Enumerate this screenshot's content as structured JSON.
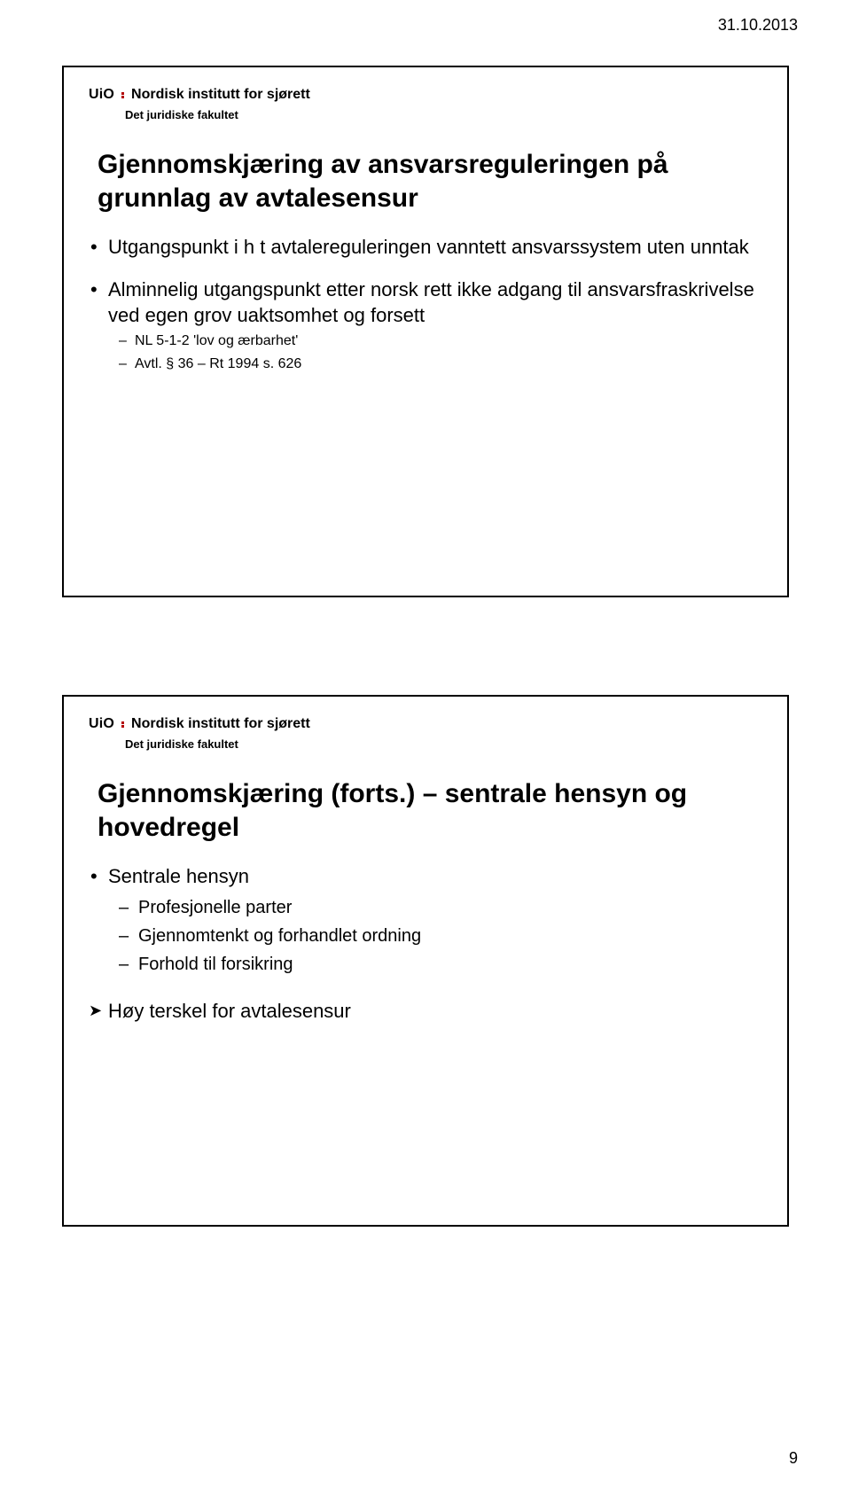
{
  "page": {
    "date": "31.10.2013",
    "page_number": "9"
  },
  "logo": {
    "uio": "UiO",
    "institute": "Nordisk institutt for sjørett",
    "faculty": "Det juridiske fakultet"
  },
  "slide1": {
    "title": "Gjennomskjæring av ansvarsreguleringen på grunnlag av avtalesensur",
    "b1": "Utgangspunkt i h t avtalereguleringen vanntett ansvarssystem uten unntak",
    "b2": "Alminnelig utgangspunkt etter norsk rett ikke adgang til ansvarsfraskrivelse ved egen grov uaktsomhet og forsett",
    "b2_s1": "NL 5-1-2 'lov og ærbarhet'",
    "b2_s2": "Avtl. § 36 – Rt 1994 s. 626"
  },
  "slide2": {
    "title": "Gjennomskjæring (forts.) – sentrale hensyn og hovedregel",
    "b1": "Sentrale hensyn",
    "b1_s1": "Profesjonelle parter",
    "b1_s2": "Gjennomtenkt og forhandlet ordning",
    "b1_s3": "Forhold til forsikring",
    "arrow": "Høy terskel for avtalesensur"
  }
}
